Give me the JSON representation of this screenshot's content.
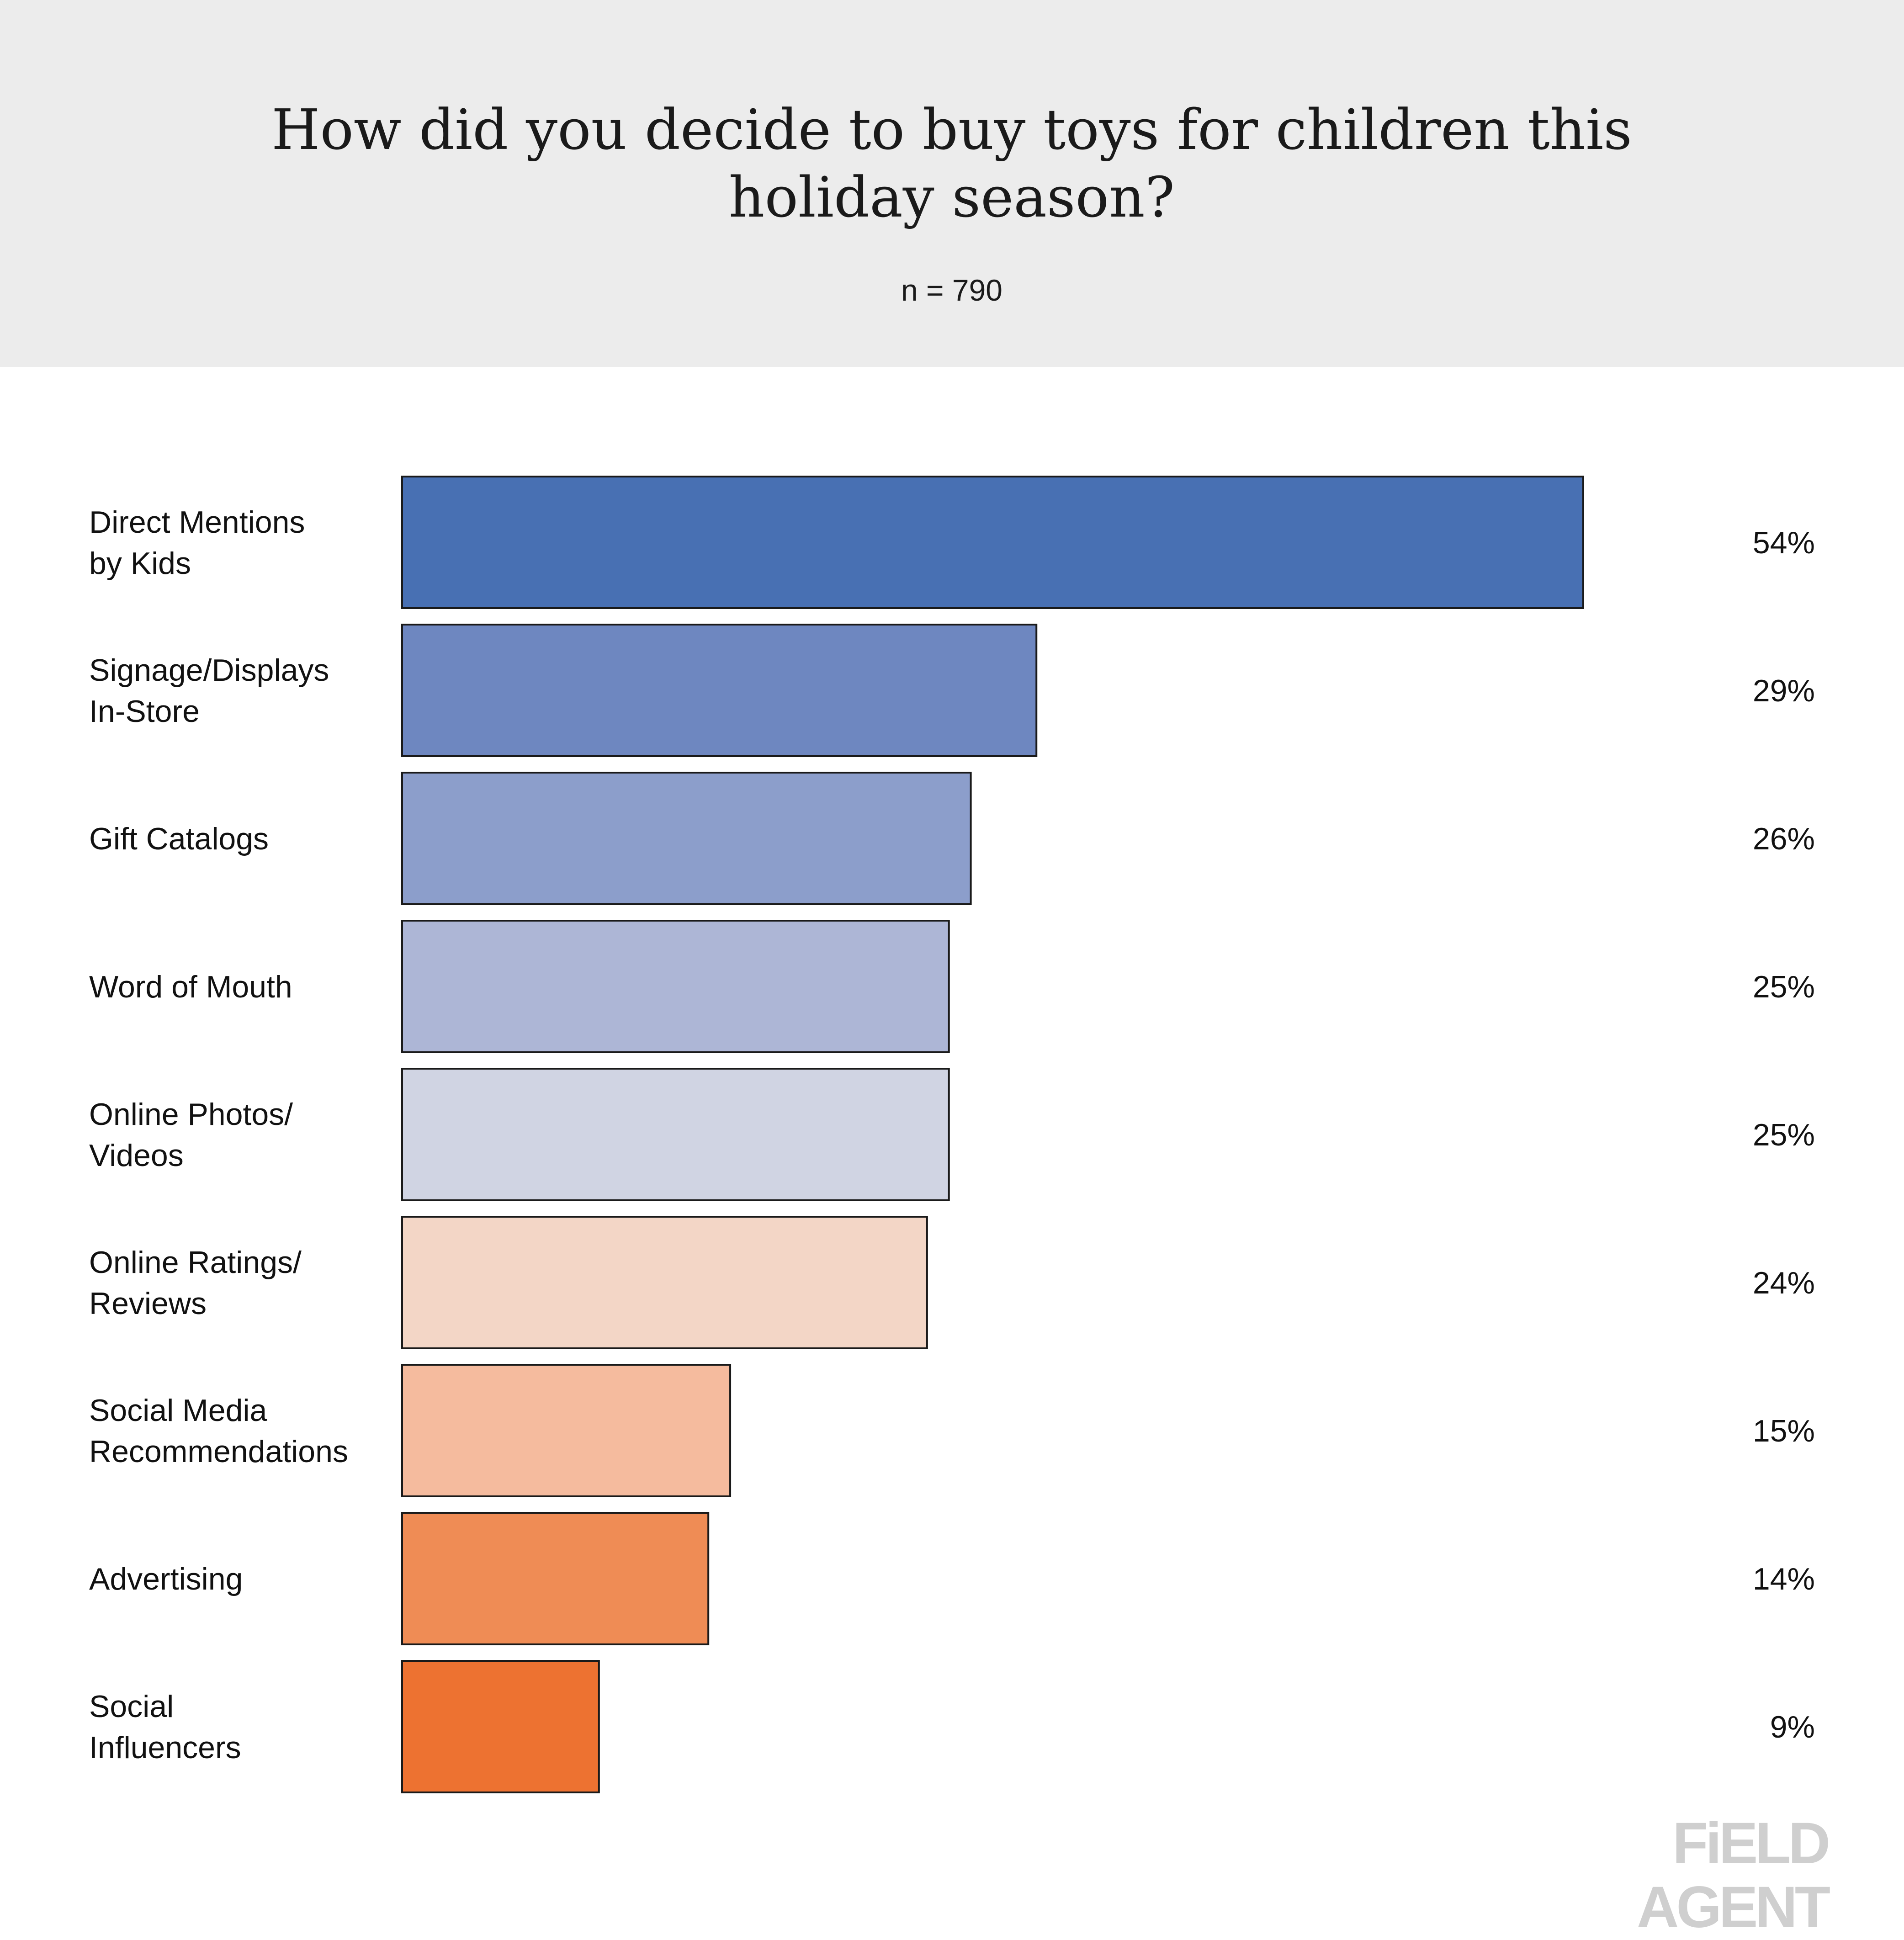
{
  "header": {
    "title": "How did you decide to buy toys for children this holiday season?",
    "subtitle": "n = 790"
  },
  "chart_data": {
    "type": "bar",
    "orientation": "horizontal",
    "title": "How did you decide to buy toys for children this holiday season?",
    "subtitle": "n = 790",
    "xlabel": "",
    "ylabel": "",
    "xlim": [
      0,
      60
    ],
    "grid": false,
    "categories": [
      [
        "Direct Mentions",
        "by Kids"
      ],
      [
        "Signage/Displays",
        "In-Store"
      ],
      [
        "Gift Catalogs"
      ],
      [
        "Word of Mouth"
      ],
      [
        "Online Photos/",
        "Videos"
      ],
      [
        "Online Ratings/",
        "Reviews"
      ],
      [
        "Social Media",
        "Recommendations"
      ],
      [
        "Advertising"
      ],
      [
        "Social",
        "Influencers"
      ]
    ],
    "values": [
      54,
      29,
      26,
      25,
      25,
      24,
      15,
      14,
      9
    ],
    "value_labels": [
      "54%",
      "29%",
      "26%",
      "25%",
      "25%",
      "24%",
      "15%",
      "14%",
      "9%"
    ],
    "colors": [
      "#4870b3",
      "#6e87c0",
      "#8c9ecb",
      "#adb6d6",
      "#d0d4e3",
      "#f3d6c6",
      "#f5bb9e",
      "#ef8c55",
      "#ed7231"
    ]
  },
  "brand": {
    "logo_text": "FiELD AGENT"
  }
}
